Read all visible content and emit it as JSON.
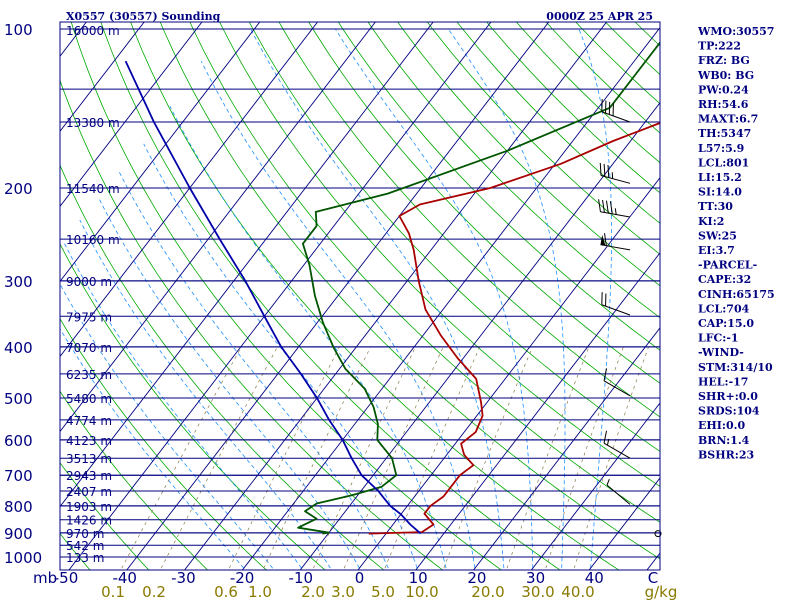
{
  "header": {
    "station": "X0557 (30557) Sounding",
    "time": "0000Z 25 APR 25"
  },
  "indices": [
    "WMO:30557",
    "TP:222",
    "FRZ: BG",
    "WB0: BG",
    "PW:0.24",
    "RH:54.6",
    "MAXT:6.7",
    "TH:5347",
    "L57:5.9",
    "LCL:801",
    "LI:15.2",
    "SI:14.0",
    "TT:30",
    "KI:2",
    "SW:25",
    "EI:3.7",
    "-PARCEL-",
    "CAPE:32",
    "CINH:65175",
    "LCL:704",
    "CAP:15.0",
    "LFC:-1",
    "-WIND-",
    "STM:314/10",
    "HEL:-17",
    "SHR+:0.0",
    "SRDS:104",
    "EHI:0.0",
    "BRN:1.4",
    "BSHR:23"
  ],
  "chart_data": {
    "type": "line",
    "chart_kind": "skew-T log-P sounding",
    "pressure_axis": {
      "range": [
        1000,
        100
      ],
      "scale": "log",
      "tick_labels": [
        "100",
        "200",
        "300",
        "400",
        "500",
        "600",
        "700",
        "800",
        "900",
        "1000"
      ],
      "unit_label": "mb"
    },
    "temperature_axis": {
      "range": [
        -50,
        50
      ],
      "tick_labels": [
        "-50",
        "-40",
        "-30",
        "-20",
        "-10",
        "0",
        "10",
        "20",
        "30",
        "40",
        "C"
      ]
    },
    "mixing_ratio_axis": {
      "tick_labels": [
        "0.1",
        "0.2",
        "0.6",
        "1.0",
        "2.0",
        "3.0",
        "5.0",
        "10.0",
        "20.0",
        "30.0",
        "40.0",
        "g/kg"
      ]
    },
    "height_levels": [
      {
        "p": 130,
        "label": "16000 m"
      },
      {
        "p": 150,
        "label": "13380 m"
      },
      {
        "p": 200,
        "label": "11540 m"
      },
      {
        "p": 250,
        "label": "10160 m"
      },
      {
        "p": 300,
        "label": "9000 m"
      },
      {
        "p": 350,
        "label": "7975 m"
      },
      {
        "p": 400,
        "label": "7070 m"
      },
      {
        "p": 450,
        "label": "6235 m"
      },
      {
        "p": 500,
        "label": "5480 m"
      },
      {
        "p": 550,
        "label": "4774 m"
      },
      {
        "p": 600,
        "label": "4123 m"
      },
      {
        "p": 650,
        "label": "3513 m"
      },
      {
        "p": 700,
        "label": "2943 m"
      },
      {
        "p": 750,
        "label": "2407 m"
      },
      {
        "p": 800,
        "label": "1903 m"
      },
      {
        "p": 850,
        "label": "1426 m"
      },
      {
        "p": 900,
        "label": "970 m"
      },
      {
        "p": 950,
        "label": "542 m"
      },
      {
        "p": 1000,
        "label": "133 m"
      }
    ],
    "series": [
      {
        "id": "temperature",
        "color": "#aa0000",
        "points": [
          [
            903,
            -3
          ],
          [
            897,
            6
          ],
          [
            868,
            7
          ],
          [
            828,
            4
          ],
          [
            800,
            4
          ],
          [
            768,
            5
          ],
          [
            730,
            5
          ],
          [
            700,
            5
          ],
          [
            670,
            6
          ],
          [
            640,
            3
          ],
          [
            610,
            1
          ],
          [
            580,
            2
          ],
          [
            540,
            1
          ],
          [
            510,
            -1
          ],
          [
            460,
            -5
          ],
          [
            420,
            -11
          ],
          [
            380,
            -17
          ],
          [
            340,
            -23
          ],
          [
            300,
            -28
          ],
          [
            262,
            -33
          ],
          [
            244,
            -36
          ],
          [
            226,
            -40
          ],
          [
            215,
            -38
          ],
          [
            200,
            -28
          ],
          [
            180,
            -19
          ],
          [
            163,
            -13
          ],
          [
            146,
            -5
          ],
          [
            126,
            -3
          ],
          [
            105,
            -2
          ]
        ]
      },
      {
        "id": "dewpoint",
        "color": "#005500",
        "points": [
          [
            903,
            -11
          ],
          [
            899,
            -10
          ],
          [
            880,
            -16
          ],
          [
            846,
            -14
          ],
          [
            819,
            -17
          ],
          [
            792,
            -16
          ],
          [
            764,
            -11
          ],
          [
            736,
            -7
          ],
          [
            700,
            -6
          ],
          [
            650,
            -9
          ],
          [
            600,
            -14
          ],
          [
            560,
            -16
          ],
          [
            520,
            -19
          ],
          [
            480,
            -23
          ],
          [
            440,
            -29
          ],
          [
            400,
            -34
          ],
          [
            360,
            -39
          ],
          [
            320,
            -44
          ],
          [
            280,
            -49
          ],
          [
            255,
            -53
          ],
          [
            236,
            -53
          ],
          [
            222,
            -55
          ],
          [
            205,
            -45
          ],
          [
            170,
            -30
          ],
          [
            141,
            -18
          ],
          [
            100,
            -18
          ]
        ]
      },
      {
        "id": "parcel",
        "color": "#0000aa",
        "points": [
          [
            903,
            6
          ],
          [
            868,
            3
          ],
          [
            830,
            0
          ],
          [
            800,
            -3
          ],
          [
            750,
            -7
          ],
          [
            700,
            -12
          ],
          [
            650,
            -16
          ],
          [
            600,
            -20
          ],
          [
            550,
            -25
          ],
          [
            500,
            -30
          ],
          [
            450,
            -36
          ],
          [
            400,
            -43
          ],
          [
            350,
            -50
          ],
          [
            300,
            -58
          ],
          [
            250,
            -68
          ],
          [
            200,
            -80
          ],
          [
            150,
            -95
          ],
          [
            115,
            -108
          ]
        ]
      }
    ],
    "winds": [
      {
        "p": 150,
        "dir": 290,
        "speed": 40
      },
      {
        "p": 196,
        "dir": 285,
        "speed": 35
      },
      {
        "p": 227,
        "dir": 280,
        "speed": 45
      },
      {
        "p": 262,
        "dir": 280,
        "speed": 60
      },
      {
        "p": 348,
        "dir": 290,
        "speed": 20
      },
      {
        "p": 495,
        "dir": 300,
        "speed": 10
      },
      {
        "p": 650,
        "dir": 300,
        "speed": 15
      },
      {
        "p": 795,
        "dir": 310,
        "speed": 5
      },
      {
        "p": 903,
        "dir": 0,
        "speed": 0
      }
    ]
  },
  "colors": {
    "background": "#ffffff",
    "frame": "#000080",
    "isobar": "#000080",
    "isotherm": "#000080",
    "dry_adiabat": "#00aa00",
    "moist_adiabat": "#1e90ff",
    "mixing_ratio": "#8a7a4a",
    "temperature": "#aa0000",
    "dewpoint": "#005500",
    "parcel": "#0000aa",
    "text": "#000080",
    "mix_text": "#8a7a00"
  }
}
